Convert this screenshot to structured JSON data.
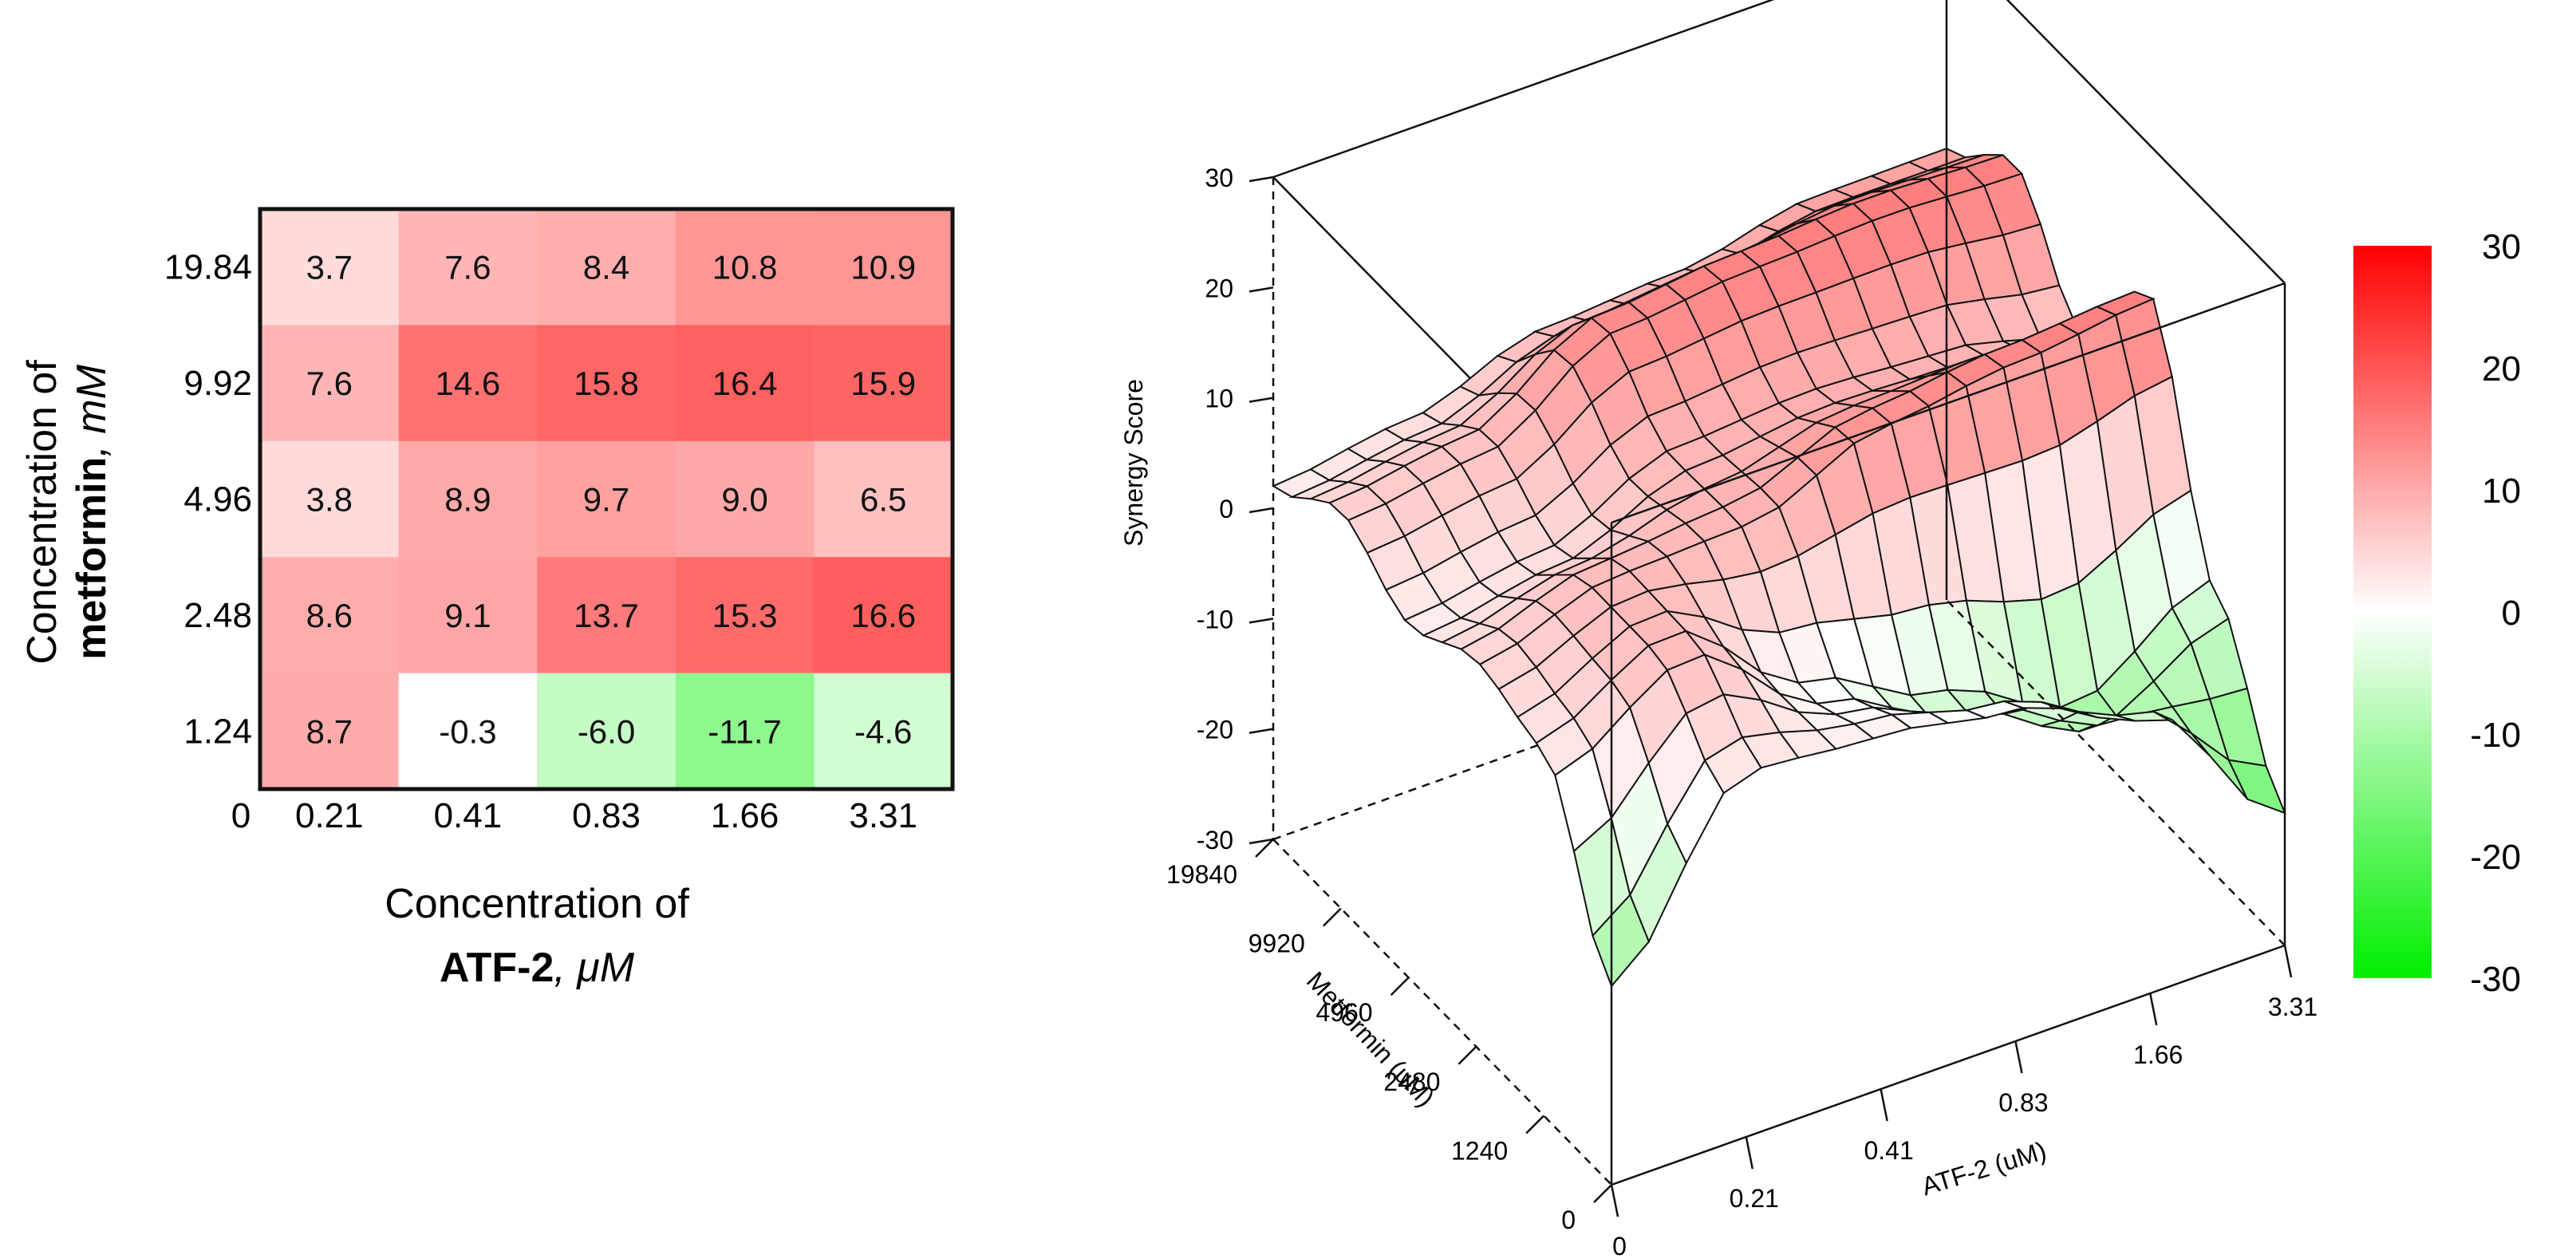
{
  "chart_data": [
    {
      "type": "heatmap",
      "x_ticks": [
        "0.21",
        "0.41",
        "0.83",
        "1.66",
        "3.31"
      ],
      "y_ticks_top_to_bottom": [
        "19.84",
        "9.92",
        "4.96",
        "2.48",
        "1.24"
      ],
      "origin_label": "0",
      "values_top_to_bottom": [
        [
          3.7,
          7.6,
          8.4,
          10.8,
          10.9
        ],
        [
          7.6,
          14.6,
          15.8,
          16.4,
          15.9
        ],
        [
          3.8,
          8.9,
          9.7,
          9.0,
          6.5
        ],
        [
          8.6,
          9.1,
          13.7,
          15.3,
          16.6
        ],
        [
          8.7,
          -0.3,
          -6.0,
          -11.7,
          -4.6
        ]
      ],
      "value_labels_top_to_bottom": [
        [
          "3.7",
          "7.6",
          "8.4",
          "10.8",
          "10.9"
        ],
        [
          "7.6",
          "14.6",
          "15.8",
          "16.4",
          "15.9"
        ],
        [
          "3.8",
          "8.9",
          "9.7",
          "9.0",
          "6.5"
        ],
        [
          "8.6",
          "9.1",
          "13.7",
          "15.3",
          "16.6"
        ],
        [
          "8.7",
          "-0.3",
          "-6.0",
          "-11.7",
          "-4.6"
        ]
      ],
      "color_range": [
        -30,
        30
      ],
      "xlabel_line1": "Concentration of",
      "xlabel_bold": "ATF-2",
      "xlabel_unit": ", μM",
      "ylabel_line1": "Concentration of",
      "ylabel_bold": "metformin",
      "ylabel_unit": ", mM"
    },
    {
      "type": "surface",
      "zlabel": "Synergy Score",
      "z_ticks": [
        "30",
        "20",
        "10",
        "0",
        "-10",
        "-20",
        "-30"
      ],
      "z_range": [
        -30,
        30
      ],
      "x_label": "ATF-2 (uM)",
      "x_ticks": [
        "0",
        "0.21",
        "0.41",
        "0.83",
        "1.66",
        "3.31"
      ],
      "y_label": "Metformin (uM)",
      "y_ticks": [
        "0",
        "1240",
        "2480",
        "4960",
        "9920",
        "19840"
      ],
      "grid_x_values": [
        0,
        0.21,
        0.41,
        0.83,
        1.66,
        3.31
      ],
      "grid_y_values": [
        0,
        1240,
        2480,
        4960,
        9920,
        19840
      ],
      "grid_z_values": [
        [
          -12,
          3,
          2,
          0,
          -5,
          -18
        ],
        [
          3,
          8.7,
          -0.3,
          -6.0,
          -11.7,
          -4.6
        ],
        [
          5,
          8.6,
          9.1,
          13.7,
          15.3,
          16.6
        ],
        [
          2,
          3.8,
          8.9,
          9.7,
          9.0,
          6.5
        ],
        [
          6,
          7.6,
          14.6,
          15.8,
          16.4,
          15.9
        ],
        [
          2,
          3.7,
          7.6,
          8.4,
          10.8,
          10.9
        ]
      ],
      "colorbar_ticks": [
        "30",
        "20",
        "10",
        "0",
        "-10",
        "-20",
        "-30"
      ],
      "colorbar_range": [
        -30,
        30
      ]
    }
  ]
}
